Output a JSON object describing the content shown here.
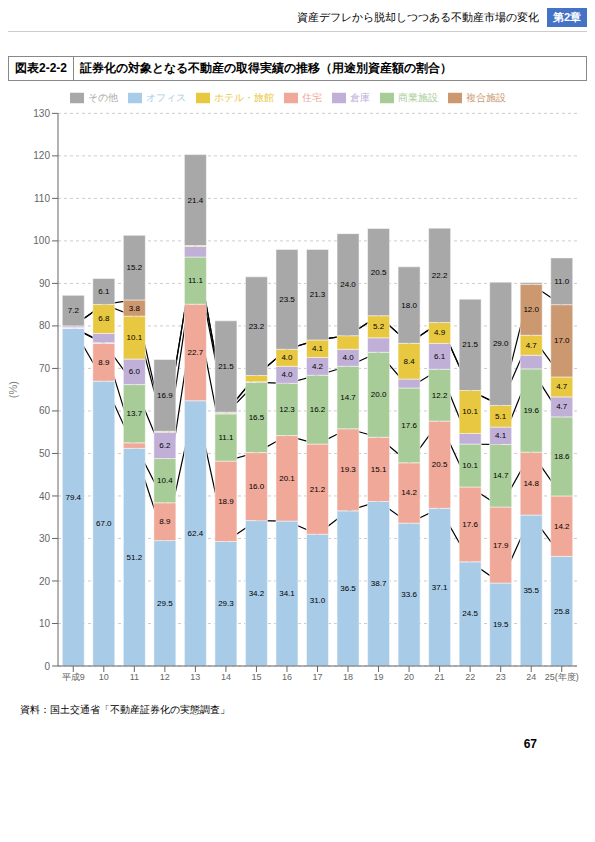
{
  "header": "資産デフレから脱却しつつある不動産市場の変化",
  "chapter": "第2章",
  "page": "67",
  "chart_data": {
    "type": "bar",
    "stacked": true,
    "figure_number": "図表2-2-2",
    "title": "証券化の対象となる不動産の取得実績の推移（用途別資産額の割合）",
    "source": "資料：国土交通省「不動産証券化の実態調査」",
    "ylabel": "(%)",
    "categories": [
      "平成9",
      "10",
      "11",
      "12",
      "13",
      "14",
      "15",
      "16",
      "17",
      "18",
      "19",
      "20",
      "21",
      "22",
      "23",
      "24",
      "25(年度)"
    ],
    "ylim": [
      0,
      130
    ],
    "yticks": [
      0,
      10,
      20,
      30,
      40,
      50,
      60,
      70,
      80,
      90,
      100,
      110,
      120,
      130
    ],
    "grid": true,
    "legend": "top",
    "data_labels": true,
    "series": [
      {
        "name": "オフィス",
        "color": "#a8cce8",
        "line_style": "solid",
        "values": [
          79.4,
          67.0,
          51.2,
          29.5,
          62.4,
          29.3,
          34.2,
          34.1,
          31.0,
          36.5,
          38.7,
          33.6,
          37.1,
          24.5,
          19.5,
          35.5,
          25.8
        ],
        "value_labels": [
          "79.4",
          "67.0",
          "51.2",
          "29.5",
          "62.4",
          "29.3",
          "34.2",
          "34.1",
          "31.0",
          "36.5",
          "38.7",
          "33.6",
          "37.1",
          "24.5",
          "19.5",
          "35.5",
          "25.8"
        ]
      },
      {
        "name": "住宅",
        "color": "#f0a898",
        "line_style": "solid",
        "values": [
          0.1,
          8.9,
          1.3,
          8.9,
          22.7,
          18.9,
          16.0,
          20.1,
          21.2,
          19.3,
          15.1,
          14.2,
          20.5,
          17.6,
          17.9,
          14.8,
          14.2
        ],
        "value_labels": [
          null,
          "8.9",
          null,
          "8.9",
          "22.7",
          "18.9",
          "16.0",
          "20.1",
          "21.2",
          "19.3",
          "15.1",
          "14.2",
          "20.5",
          "17.6",
          "17.9",
          "14.8",
          "14.2"
        ]
      },
      {
        "name": "商業施設",
        "color": "#a8cc98",
        "line_style": "solid",
        "values": [
          0.1,
          0.15,
          13.7,
          10.4,
          11.1,
          11.1,
          16.5,
          12.3,
          16.2,
          14.7,
          20.0,
          17.6,
          12.2,
          10.1,
          14.7,
          19.6,
          18.6
        ],
        "value_labels": [
          null,
          null,
          "13.7",
          "10.4",
          "11.1",
          "11.1",
          "16.5",
          "12.3",
          "16.2",
          "14.7",
          "20.0",
          "17.6",
          "12.2",
          "10.1",
          "14.7",
          "19.6",
          "18.6"
        ]
      },
      {
        "name": "倉庫",
        "color": "#c0b0d8",
        "values": [
          0.4,
          2.2,
          6.0,
          6.2,
          2.5,
          0.2,
          0.15,
          4.0,
          4.2,
          4.0,
          3.4,
          2.1,
          6.1,
          2.5,
          4.1,
          3.2,
          4.7
        ],
        "value_labels": [
          null,
          null,
          "6.0",
          "6.2",
          null,
          null,
          null,
          "4.0",
          "4.2",
          "4.0",
          null,
          null,
          "6.1",
          null,
          "4.1",
          null,
          "4.7"
        ]
      },
      {
        "name": "ホテル・旅館",
        "color": "#e8c840",
        "line_style": "solid",
        "values": [
          0.0,
          6.8,
          10.1,
          0.2,
          0.2,
          0.2,
          1.5,
          4.0,
          4.1,
          3.2,
          5.2,
          8.4,
          4.9,
          10.1,
          5.1,
          4.7,
          4.7
        ],
        "value_labels": [
          null,
          "6.8",
          "10.1",
          null,
          null,
          null,
          null,
          "4.0",
          "4.1",
          null,
          "5.2",
          "8.4",
          "4.9",
          "10.1",
          "5.1",
          "4.7",
          "4.7"
        ]
      },
      {
        "name": "複合施設",
        "color": "#cc9870",
        "line_style": "solid",
        "values": [
          0.0,
          0.0,
          3.8,
          0.0,
          0.0,
          0.0,
          0.0,
          0.0,
          0.0,
          0.0,
          0.0,
          0.0,
          0.0,
          0.0,
          0.0,
          12.0,
          17.0
        ],
        "value_labels": [
          null,
          null,
          "3.8",
          null,
          null,
          null,
          null,
          null,
          null,
          null,
          null,
          null,
          null,
          null,
          null,
          "12.0",
          "17.0"
        ]
      },
      {
        "name": "その他",
        "color": "#a8a8a8",
        "values": [
          7.2,
          6.1,
          15.2,
          16.9,
          21.4,
          21.5,
          23.2,
          23.5,
          21.3,
          24.0,
          20.5,
          18.0,
          22.2,
          21.5,
          29.0,
          0.4,
          11.0
        ],
        "value_labels": [
          "7.2",
          "6.1",
          "15.2",
          "16.9",
          "21.4",
          "21.5",
          "23.2",
          "23.5",
          "21.3",
          "24.0",
          "20.5",
          "18.0",
          "22.2",
          "21.5",
          "29.0",
          null,
          "11.0"
        ]
      }
    ]
  }
}
